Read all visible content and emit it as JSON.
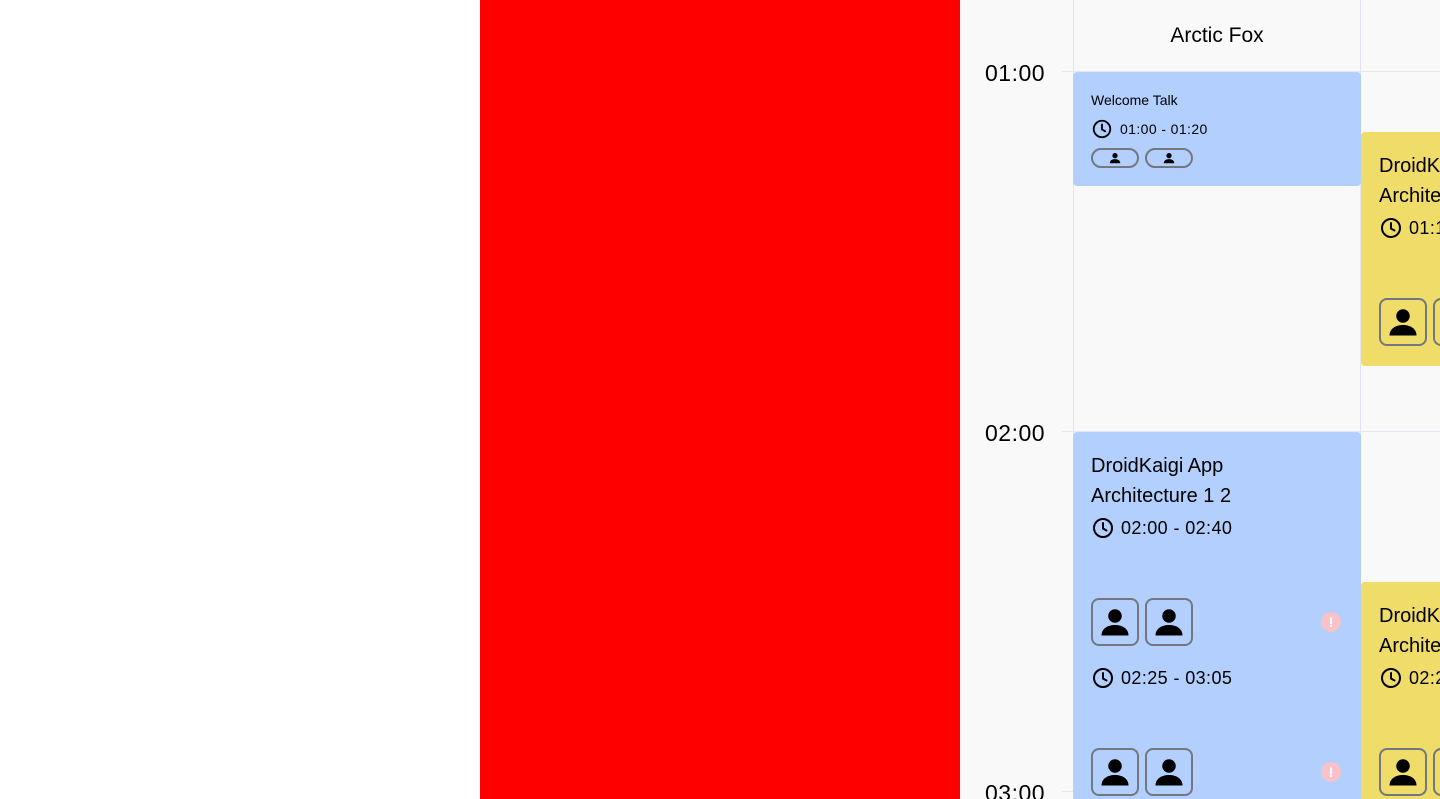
{
  "colors": {
    "background": "#ffffff",
    "red_panel": "#ff0000",
    "timetable_bg": "#f9f9f9",
    "session_blue": "#b3cffd",
    "session_yellow": "#f0dc69",
    "avatar_border": "#73777f",
    "warning_badge": "#f7c2c9"
  },
  "timetable": {
    "rooms": [
      {
        "name": "Arctic Fox"
      },
      {
        "name": ""
      }
    ],
    "hours": [
      "01:00",
      "02:00",
      "03:00"
    ],
    "sessions": [
      {
        "room": "Arctic Fox",
        "title": "Welcome Talk",
        "time": "01:00 - 01:20",
        "speaker_icons": [
          "person-icon",
          "person-icon"
        ]
      },
      {
        "room": "Arctic Fox",
        "title_lines": [
          "DroidKaigi App",
          "Architecture 1 2"
        ],
        "time": "02:00 - 02:40",
        "speaker_icons": [
          "person-icon",
          "person-icon"
        ],
        "status_icon": "warning-icon",
        "status_glyph": "!"
      },
      {
        "room": "Arctic Fox",
        "time": "02:25 - 03:05",
        "speaker_icons": [
          "person-icon",
          "person-icon"
        ],
        "status_icon": "warning-icon",
        "status_glyph": "!"
      },
      {
        "room": "second-room",
        "title_lines": [
          "DroidK",
          "Archite"
        ],
        "time": "01:1",
        "speaker_icons": [
          "person-icon",
          "person-icon"
        ]
      },
      {
        "room": "second-room",
        "title_lines": [
          "DroidK",
          "Archite"
        ],
        "time": "02:2",
        "speaker_icons": [
          "person-icon",
          "person-icon"
        ]
      }
    ]
  }
}
